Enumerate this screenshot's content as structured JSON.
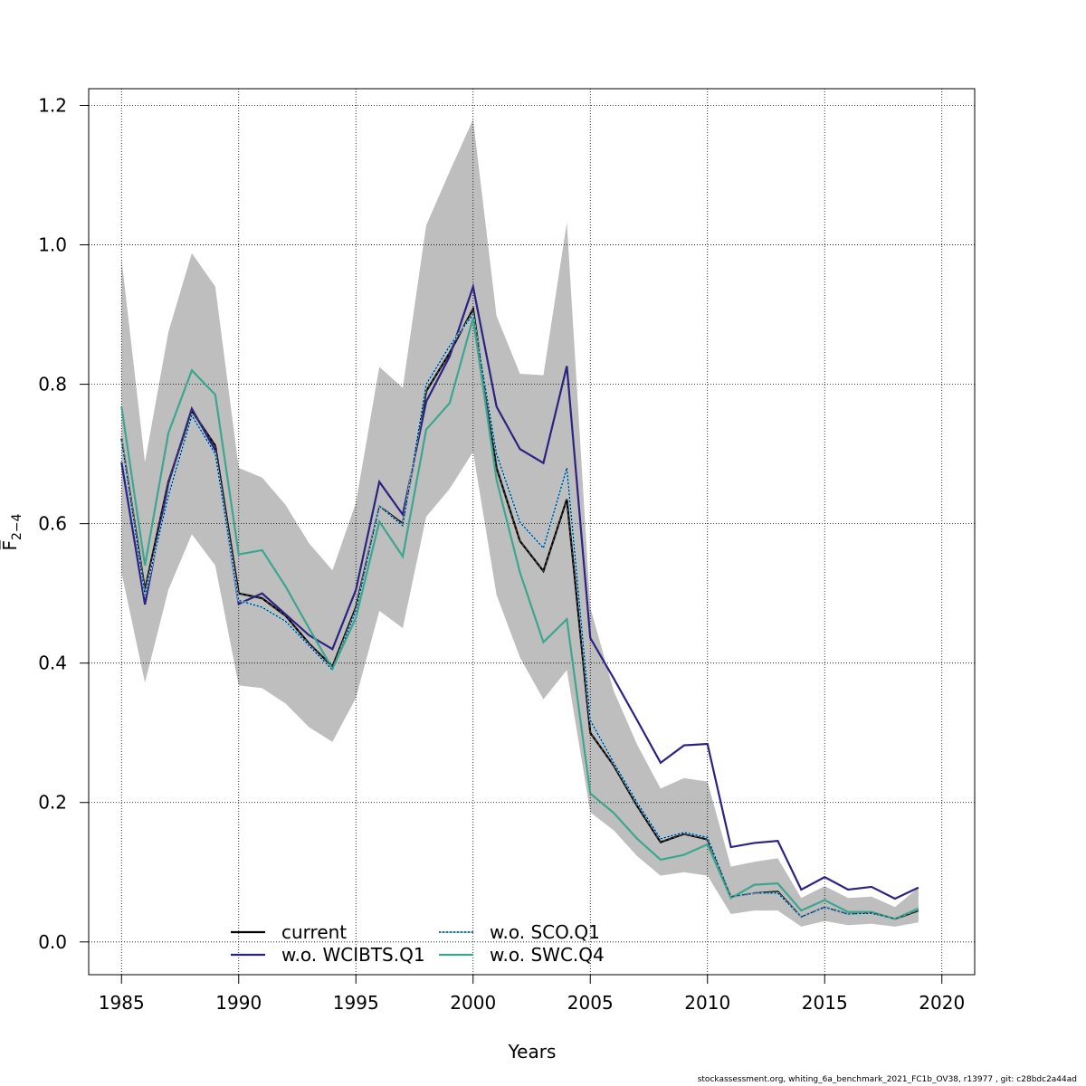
{
  "footer_text": "stockassessment.org, whiting_6a_benchmark_2021_FC1b_OV38, r13977 , git: c28bdc2a44ad",
  "chart_data": {
    "type": "line",
    "xlabel": "Years",
    "ylabel": "F̅",
    "ylabel_sub": "2−4",
    "xlim": [
      1983.6,
      2021.4
    ],
    "ylim": [
      -0.047,
      1.224
    ],
    "xticks": [
      1985,
      1990,
      1995,
      2000,
      2005,
      2010,
      2015,
      2020
    ],
    "yticks": [
      0.0,
      0.2,
      0.4,
      0.6,
      0.8,
      1.0,
      1.2
    ],
    "ytick_labels": [
      "0.0",
      "0.2",
      "0.4",
      "0.6",
      "0.8",
      "1.0",
      "1.2"
    ],
    "grid": true,
    "legend_position": "bottom",
    "x": [
      1985,
      1986,
      1987,
      1988,
      1989,
      1990,
      1991,
      1992,
      1993,
      1994,
      1995,
      1996,
      1997,
      1998,
      1999,
      2000,
      2001,
      2002,
      2003,
      2004,
      2005,
      2006,
      2007,
      2008,
      2009,
      2010,
      2011,
      2012,
      2013,
      2014,
      2015,
      2016,
      2017,
      2018,
      2019
    ],
    "band": {
      "color": "#bebebe",
      "lower": [
        0.53,
        0.372,
        0.505,
        0.585,
        0.54,
        0.368,
        0.364,
        0.342,
        0.308,
        0.287,
        0.35,
        0.475,
        0.45,
        0.61,
        0.65,
        0.703,
        0.498,
        0.408,
        0.348,
        0.39,
        0.186,
        0.16,
        0.123,
        0.095,
        0.1,
        0.095,
        0.04,
        0.045,
        0.045,
        0.022,
        0.03,
        0.024,
        0.026,
        0.022,
        0.028
      ],
      "upper": [
        0.98,
        0.688,
        0.875,
        0.988,
        0.94,
        0.68,
        0.666,
        0.627,
        0.572,
        0.533,
        0.63,
        0.825,
        0.795,
        1.028,
        1.105,
        1.18,
        0.898,
        0.815,
        0.813,
        1.032,
        0.48,
        0.36,
        0.283,
        0.22,
        0.235,
        0.23,
        0.108,
        0.115,
        0.12,
        0.063,
        0.08,
        0.063,
        0.065,
        0.05,
        0.078
      ]
    },
    "series": [
      {
        "name": "current",
        "color": "#000000",
        "dash": "solid",
        "values": [
          0.722,
          0.505,
          0.66,
          0.762,
          0.712,
          0.5,
          0.493,
          0.468,
          0.428,
          0.395,
          0.48,
          0.625,
          0.6,
          0.79,
          0.845,
          0.908,
          0.68,
          0.575,
          0.532,
          0.635,
          0.3,
          0.253,
          0.195,
          0.143,
          0.155,
          0.147,
          0.065,
          0.07,
          0.072,
          0.036,
          0.05,
          0.04,
          0.042,
          0.033,
          0.045
        ]
      },
      {
        "name": "w.o. WCIBTS.Q1",
        "color": "#2c2282",
        "dash": "solid",
        "values": [
          0.688,
          0.484,
          0.658,
          0.765,
          0.705,
          0.485,
          0.5,
          0.47,
          0.44,
          0.42,
          0.505,
          0.66,
          0.613,
          0.775,
          0.84,
          0.94,
          0.768,
          0.707,
          0.687,
          0.826,
          0.436,
          0.378,
          0.318,
          0.257,
          0.282,
          0.284,
          0.136,
          0.142,
          0.145,
          0.075,
          0.093,
          0.075,
          0.079,
          0.062,
          0.078
        ]
      },
      {
        "name": "w.o. SCO.Q1",
        "color": "#87cefa",
        "dash": "dotted",
        "values": [
          0.72,
          0.498,
          0.64,
          0.755,
          0.7,
          0.49,
          0.48,
          0.46,
          0.425,
          0.39,
          0.475,
          0.625,
          0.597,
          0.8,
          0.855,
          0.9,
          0.7,
          0.602,
          0.565,
          0.68,
          0.318,
          0.257,
          0.2,
          0.148,
          0.157,
          0.15,
          0.065,
          0.07,
          0.07,
          0.036,
          0.05,
          0.04,
          0.041,
          0.033,
          0.047
        ]
      },
      {
        "name": "w.o. SWC.Q4",
        "color": "#3da68f",
        "dash": "solid",
        "values": [
          0.768,
          0.54,
          0.73,
          0.82,
          0.785,
          0.556,
          0.562,
          0.51,
          0.45,
          0.392,
          0.465,
          0.603,
          0.553,
          0.735,
          0.773,
          0.895,
          0.663,
          0.53,
          0.43,
          0.463,
          0.213,
          0.185,
          0.148,
          0.118,
          0.125,
          0.14,
          0.063,
          0.082,
          0.084,
          0.045,
          0.06,
          0.043,
          0.043,
          0.033,
          0.048
        ]
      }
    ]
  }
}
